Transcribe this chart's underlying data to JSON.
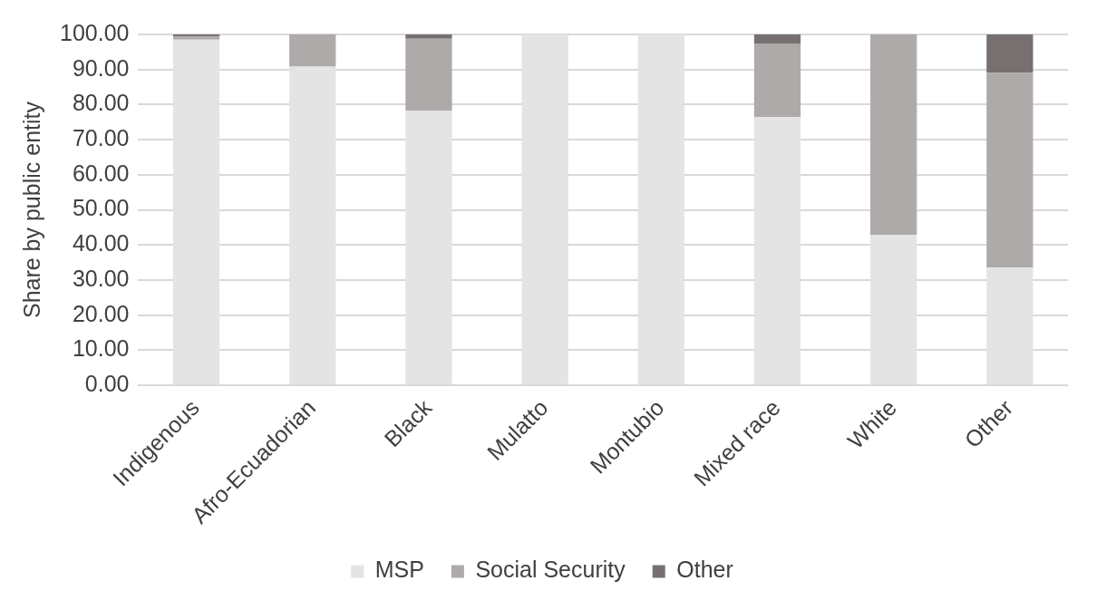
{
  "chart_data": {
    "type": "bar",
    "stacked": true,
    "ylabel": "Share by public entity",
    "categories": [
      "Indigenous",
      "Afro-Ecuadorian",
      "Black",
      "Mulatto",
      "Montubio",
      "Mixed race",
      "White",
      "Other"
    ],
    "series": [
      {
        "name": "MSP",
        "color": "#e4e4e4",
        "values": [
          98.5,
          90.8,
          78.3,
          100,
          100,
          76.5,
          42.9,
          33.6
        ]
      },
      {
        "name": "Social Security",
        "color": "#aeaaa9",
        "values": [
          0.9,
          9.2,
          20.5,
          0,
          0,
          20.9,
          57.1,
          55.5
        ]
      },
      {
        "name": "Other",
        "color": "#767170",
        "values": [
          0.6,
          0,
          1.2,
          0,
          0,
          2.6,
          0,
          10.9
        ]
      }
    ],
    "ylim": [
      0,
      100
    ],
    "yticks": [
      {
        "value": 0,
        "label": "0.00"
      },
      {
        "value": 10,
        "label": "10.00"
      },
      {
        "value": 20,
        "label": "20.00"
      },
      {
        "value": 30,
        "label": "30.00"
      },
      {
        "value": 40,
        "label": "40.00"
      },
      {
        "value": 50,
        "label": "50.00"
      },
      {
        "value": 60,
        "label": "60.00"
      },
      {
        "value": 70,
        "label": "70.00"
      },
      {
        "value": 80,
        "label": "80.00"
      },
      {
        "value": 90,
        "label": "90.00"
      },
      {
        "value": 100,
        "label": "100.00"
      }
    ],
    "grid": "y",
    "legend": "bottom"
  }
}
